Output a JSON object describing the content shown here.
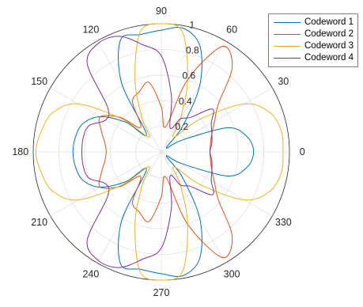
{
  "chart_data": {
    "type": "polar-line",
    "title": "",
    "angle_ticks": [
      "0",
      "30",
      "60",
      "90",
      "120",
      "150",
      "180",
      "210",
      "240",
      "270",
      "300",
      "330"
    ],
    "radius_ticks": [
      "0.2",
      "0.4",
      "0.6",
      "0.8",
      "1"
    ],
    "rlim": [
      0,
      1
    ],
    "grid": true,
    "legend_position": "top-right",
    "series": [
      {
        "name": "Codeword 1",
        "color": "#0072BD",
        "theta_deg": [
          0,
          10,
          20,
          30,
          40,
          50,
          60,
          70,
          80,
          90,
          100,
          110,
          120,
          130,
          140,
          150,
          160,
          170,
          180,
          190,
          200,
          210,
          220,
          230,
          240,
          250,
          260,
          270,
          280,
          290,
          300,
          310,
          320,
          330,
          340,
          350,
          360
        ],
        "r": [
          0.72,
          0.68,
          0.55,
          0.18,
          0.05,
          0.25,
          0.6,
          0.88,
          0.98,
          0.95,
          0.93,
          0.93,
          0.62,
          0.18,
          0.36,
          0.55,
          0.65,
          0.68,
          0.69,
          0.68,
          0.65,
          0.55,
          0.36,
          0.18,
          0.62,
          0.93,
          0.93,
          0.95,
          0.98,
          0.88,
          0.6,
          0.25,
          0.05,
          0.18,
          0.55,
          0.68,
          0.72
        ]
      },
      {
        "name": "Codeword 2",
        "color": "#D95319",
        "theta_deg": [
          0,
          10,
          20,
          30,
          40,
          50,
          60,
          70,
          80,
          90,
          100,
          110,
          120,
          130,
          140,
          150,
          160,
          170,
          180,
          190,
          200,
          210,
          220,
          230,
          240,
          250,
          260,
          270,
          280,
          290,
          300,
          310,
          320,
          330,
          340,
          350,
          360
        ],
        "r": [
          0.38,
          0.39,
          0.42,
          0.48,
          0.58,
          0.86,
          0.95,
          0.6,
          0.2,
          0.35,
          0.55,
          0.5,
          0.45,
          0.25,
          0.42,
          0.55,
          0.5,
          0.45,
          0.43,
          0.45,
          0.5,
          0.55,
          0.42,
          0.25,
          0.45,
          0.5,
          0.55,
          0.35,
          0.2,
          0.6,
          0.95,
          0.86,
          0.58,
          0.48,
          0.42,
          0.39,
          0.38
        ]
      },
      {
        "name": "Codeword 3",
        "color": "#EDB120",
        "theta_deg": [
          0,
          10,
          20,
          30,
          40,
          50,
          60,
          70,
          80,
          90,
          100,
          110,
          120,
          130,
          140,
          150,
          160,
          170,
          180,
          190,
          200,
          210,
          220,
          230,
          240,
          250,
          260,
          270,
          280,
          290,
          300,
          310,
          320,
          330,
          340,
          350,
          360
        ],
        "r": [
          0.95,
          0.95,
          0.9,
          0.75,
          0.4,
          0.15,
          0.3,
          0.6,
          0.95,
          1.0,
          0.95,
          0.6,
          0.3,
          0.15,
          0.4,
          0.75,
          0.9,
          0.95,
          0.98,
          0.95,
          0.9,
          0.75,
          0.4,
          0.15,
          0.3,
          0.6,
          0.95,
          1.0,
          0.95,
          0.6,
          0.3,
          0.15,
          0.4,
          0.75,
          0.9,
          0.95,
          0.95
        ]
      },
      {
        "name": "Codeword 4",
        "color": "#7E2F8E",
        "theta_deg": [
          0,
          10,
          20,
          30,
          40,
          50,
          60,
          70,
          80,
          90,
          100,
          110,
          120,
          130,
          140,
          150,
          160,
          170,
          180,
          190,
          200,
          210,
          220,
          230,
          240,
          250,
          260,
          270,
          280,
          290,
          300,
          310,
          320,
          330,
          340,
          350,
          360
        ],
        "r": [
          0.38,
          0.4,
          0.42,
          0.45,
          0.52,
          0.35,
          0.3,
          0.2,
          0.45,
          0.75,
          0.85,
          0.96,
          0.98,
          0.9,
          0.55,
          0.5,
          0.6,
          0.62,
          0.62,
          0.62,
          0.6,
          0.5,
          0.55,
          0.9,
          0.98,
          0.96,
          0.85,
          0.75,
          0.45,
          0.2,
          0.3,
          0.35,
          0.52,
          0.45,
          0.42,
          0.4,
          0.38
        ]
      }
    ]
  }
}
